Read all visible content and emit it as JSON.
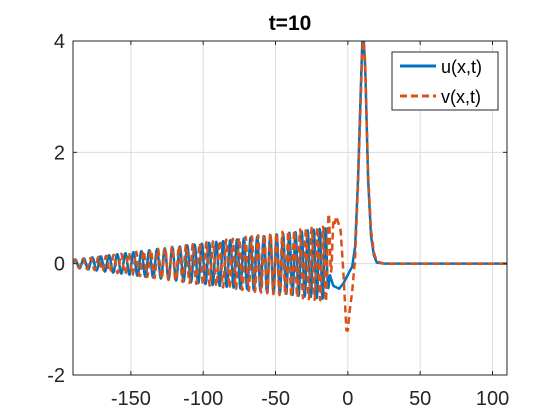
{
  "chart_data": {
    "type": "line",
    "title": "t=10",
    "xlim": [
      -190,
      110
    ],
    "ylim": [
      -2,
      4
    ],
    "xticks": [
      -150,
      -100,
      -50,
      0,
      50,
      100
    ],
    "yticks": [
      -2,
      0,
      2,
      4
    ],
    "xtick_labels": [
      "-150",
      "-100",
      "-50",
      "0",
      "50",
      "100"
    ],
    "ytick_labels": [
      "-2",
      "0",
      "2",
      "4"
    ],
    "grid": true,
    "legend_position": "top-right",
    "colors": {
      "u": "#0072BD",
      "v": "#D95319",
      "grid": "#dcdcdc",
      "axes": "#262626"
    },
    "series": [
      {
        "name": "u(x,t)",
        "style": "solid",
        "x": [
          -190,
          -170,
          -150,
          -130,
          -110,
          -90,
          -70,
          -50,
          -40,
          -30,
          -20,
          -15,
          -10,
          -6,
          -3,
          0,
          3,
          5,
          7,
          9,
          10,
          11,
          12,
          13,
          14,
          16,
          18,
          20,
          25,
          40,
          60,
          80,
          110
        ],
        "y": [
          0,
          0,
          0,
          0,
          0,
          0,
          0,
          0,
          0,
          0,
          0,
          0,
          -0.4,
          -0.45,
          -0.35,
          -0.2,
          -0.05,
          0.3,
          1.5,
          3.2,
          4.0,
          4.0,
          3.5,
          2.5,
          1.5,
          0.5,
          0.15,
          0.02,
          0,
          0,
          0,
          0,
          0
        ],
        "oscillation": {
          "x_start": -190,
          "x_end": -12,
          "amp_start": 0.07,
          "amp_end": 0.65,
          "period_start": 6.0,
          "period_end": 4.0
        }
      },
      {
        "name": "v(x,t)",
        "style": "dashed",
        "x": [
          -190,
          -170,
          -150,
          -130,
          -110,
          -90,
          -70,
          -50,
          -30,
          -15,
          -8,
          -5,
          -3,
          -1,
          0,
          1,
          2,
          3,
          5,
          7,
          9,
          10,
          11,
          12,
          13,
          14,
          16,
          18,
          20,
          25,
          40,
          60,
          80,
          110
        ],
        "y": [
          0,
          0,
          0,
          0,
          0,
          0,
          0,
          0,
          0,
          0,
          0.85,
          0.6,
          -0.2,
          -1.2,
          -1.2,
          -0.9,
          -0.7,
          -0.5,
          0.1,
          1.4,
          3.0,
          3.9,
          4.0,
          3.6,
          2.6,
          1.6,
          0.6,
          0.2,
          0.04,
          0,
          0,
          0,
          0,
          0
        ],
        "oscillation": {
          "x_start": -190,
          "x_end": -9,
          "amp_start": 0.06,
          "amp_end": 0.7,
          "period_start": 5.5,
          "period_end": 3.8
        }
      }
    ]
  }
}
